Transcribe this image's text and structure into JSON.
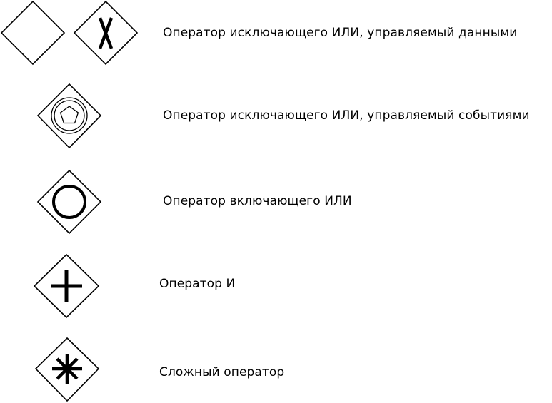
{
  "gateways": [
    {
      "name": "exclusive-data-based",
      "label": "Оператор исключающего ИЛИ, управляемый данными",
      "marker": "X"
    },
    {
      "name": "exclusive-event-based",
      "label": "Оператор исключающего ИЛИ, управляемый событиями",
      "marker": "pentagon-in-double-circle"
    },
    {
      "name": "inclusive",
      "label": "Оператор включающего ИЛИ",
      "marker": "circle"
    },
    {
      "name": "parallel",
      "label": "Оператор И",
      "marker": "plus"
    },
    {
      "name": "complex",
      "label": "Сложный оператор",
      "marker": "asterisk"
    }
  ],
  "colors": {
    "stroke": "#000000",
    "background": "#ffffff"
  }
}
